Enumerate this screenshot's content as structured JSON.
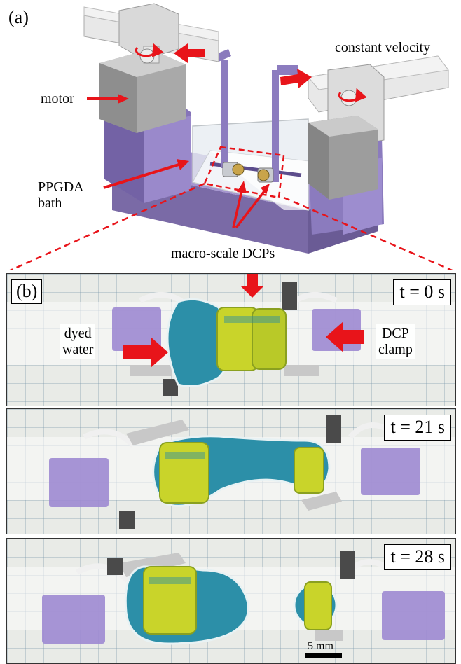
{
  "panel_a": {
    "letter": "(a)",
    "labels": {
      "constant_velocity": "constant velocity",
      "motor": "motor",
      "bath_line1": "PPGDA",
      "bath_line2": "bath",
      "dcps": "macro-scale DCPs"
    }
  },
  "panel_b": {
    "letter": "(b)",
    "labels": {
      "dyed_line1": "dyed",
      "dyed_line2": "water",
      "clamp_line1": "DCP",
      "clamp_line2": "clamp"
    },
    "frames": [
      {
        "time_label": "t = 0 s"
      },
      {
        "time_label": "t = 21 s"
      },
      {
        "time_label": "t = 28 s"
      }
    ],
    "scale_bar": "5 mm"
  },
  "colors": {
    "arrow_red": "#e8141a",
    "purple": "#8f7fbe",
    "dyed_water": "#2c8fa8",
    "dcp_yellow": "#c9d42a"
  }
}
